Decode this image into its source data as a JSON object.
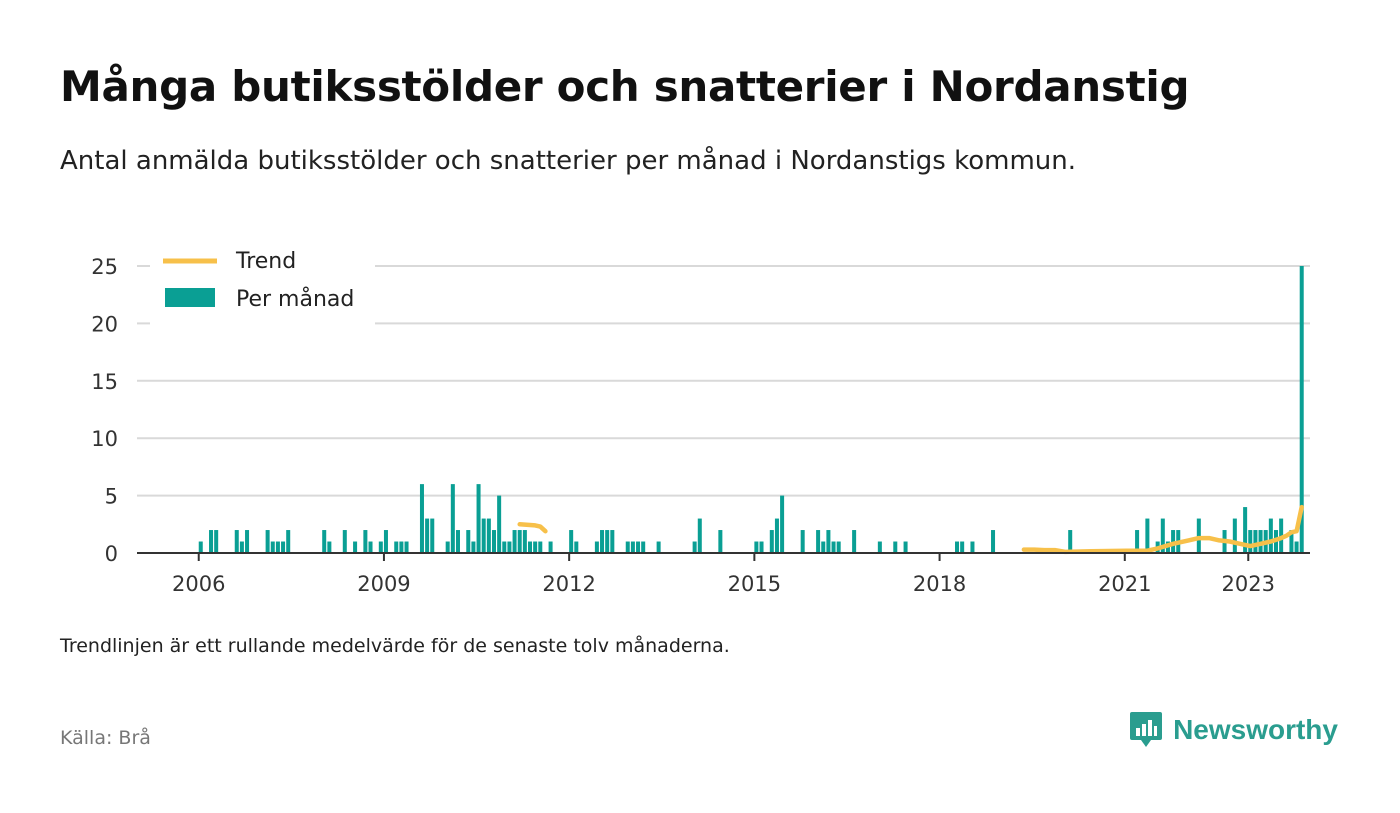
{
  "title": "Många butiksstölder och snatterier i Nordanstig",
  "subtitle": "Antal anmälda butiksstölder och snatterier per månad i Nordanstigs kommun.",
  "note": "Trendlinjen är ett rullande medelvärde för de senaste tolv månaderna.",
  "source": "Källa: Brå",
  "brand": {
    "name": "Newsworthy",
    "icon": "newsworthy-logo-icon"
  },
  "colors": {
    "bar": "#0a9f94",
    "trend": "#f7c04a",
    "grid": "#d9d9d9",
    "axis": "#333333"
  },
  "chart_data": {
    "type": "bar",
    "title": "Många butiksstölder och snatterier i Nordanstig",
    "ylim": [
      0,
      25
    ],
    "yticks": [
      0,
      5,
      10,
      15,
      20,
      25
    ],
    "xticks": [
      "2006",
      "2009",
      "2012",
      "2015",
      "2018",
      "2021",
      "2023"
    ],
    "x_range": [
      "2005-01",
      "2023-12"
    ],
    "grid": true,
    "legend_position": "top-left",
    "legend": [
      {
        "label": "Trend",
        "kind": "line"
      },
      {
        "label": "Per månad",
        "kind": "bar"
      }
    ],
    "series": [
      {
        "name": "Per månad",
        "type": "bar",
        "points": [
          [
            "2006-01",
            1
          ],
          [
            "2006-03",
            2
          ],
          [
            "2006-04",
            2
          ],
          [
            "2006-08",
            2
          ],
          [
            "2006-09",
            1
          ],
          [
            "2006-10",
            2
          ],
          [
            "2007-02",
            2
          ],
          [
            "2007-03",
            1
          ],
          [
            "2007-04",
            1
          ],
          [
            "2007-05",
            1
          ],
          [
            "2007-06",
            2
          ],
          [
            "2008-01",
            2
          ],
          [
            "2008-02",
            1
          ],
          [
            "2008-05",
            2
          ],
          [
            "2008-07",
            1
          ],
          [
            "2008-09",
            2
          ],
          [
            "2008-10",
            1
          ],
          [
            "2008-12",
            1
          ],
          [
            "2009-01",
            2
          ],
          [
            "2009-03",
            1
          ],
          [
            "2009-04",
            1
          ],
          [
            "2009-05",
            1
          ],
          [
            "2009-08",
            6
          ],
          [
            "2009-09",
            3
          ],
          [
            "2009-10",
            3
          ],
          [
            "2010-01",
            1
          ],
          [
            "2010-02",
            6
          ],
          [
            "2010-03",
            2
          ],
          [
            "2010-05",
            2
          ],
          [
            "2010-06",
            1
          ],
          [
            "2010-07",
            6
          ],
          [
            "2010-08",
            3
          ],
          [
            "2010-09",
            3
          ],
          [
            "2010-10",
            2
          ],
          [
            "2010-11",
            5
          ],
          [
            "2010-12",
            1
          ],
          [
            "2011-01",
            1
          ],
          [
            "2011-02",
            2
          ],
          [
            "2011-03",
            2
          ],
          [
            "2011-04",
            2
          ],
          [
            "2011-05",
            1
          ],
          [
            "2011-06",
            1
          ],
          [
            "2011-07",
            1
          ],
          [
            "2011-09",
            1
          ],
          [
            "2012-01",
            2
          ],
          [
            "2012-02",
            1
          ],
          [
            "2012-06",
            1
          ],
          [
            "2012-07",
            2
          ],
          [
            "2012-08",
            2
          ],
          [
            "2012-09",
            2
          ],
          [
            "2012-12",
            1
          ],
          [
            "2013-01",
            1
          ],
          [
            "2013-02",
            1
          ],
          [
            "2013-03",
            1
          ],
          [
            "2013-06",
            1
          ],
          [
            "2014-01",
            1
          ],
          [
            "2014-02",
            3
          ],
          [
            "2014-06",
            2
          ],
          [
            "2015-01",
            1
          ],
          [
            "2015-02",
            1
          ],
          [
            "2015-04",
            2
          ],
          [
            "2015-05",
            3
          ],
          [
            "2015-06",
            5
          ],
          [
            "2015-10",
            2
          ],
          [
            "2016-01",
            2
          ],
          [
            "2016-02",
            1
          ],
          [
            "2016-03",
            2
          ],
          [
            "2016-04",
            1
          ],
          [
            "2016-05",
            1
          ],
          [
            "2016-08",
            2
          ],
          [
            "2017-01",
            1
          ],
          [
            "2017-04",
            1
          ],
          [
            "2017-06",
            1
          ],
          [
            "2018-04",
            1
          ],
          [
            "2018-05",
            1
          ],
          [
            "2018-07",
            1
          ],
          [
            "2018-11",
            2
          ],
          [
            "2020-02",
            2
          ],
          [
            "2021-03",
            2
          ],
          [
            "2021-05",
            3
          ],
          [
            "2021-07",
            1
          ],
          [
            "2021-08",
            3
          ],
          [
            "2021-09",
            1
          ],
          [
            "2021-10",
            2
          ],
          [
            "2021-11",
            2
          ],
          [
            "2022-03",
            3
          ],
          [
            "2022-08",
            2
          ],
          [
            "2022-10",
            3
          ],
          [
            "2022-12",
            4
          ],
          [
            "2023-01",
            2
          ],
          [
            "2023-02",
            2
          ],
          [
            "2023-03",
            2
          ],
          [
            "2023-04",
            2
          ],
          [
            "2023-05",
            3
          ],
          [
            "2023-06",
            2
          ],
          [
            "2023-07",
            3
          ],
          [
            "2023-09",
            2
          ],
          [
            "2023-10",
            1
          ],
          [
            "2023-11",
            25
          ]
        ]
      },
      {
        "name": "Trend",
        "type": "line",
        "segments": [
          [
            [
              "2011-03",
              2.5
            ],
            [
              "2011-06",
              2.4
            ],
            [
              "2011-07",
              2.3
            ],
            [
              "2011-08",
              1.9
            ]
          ],
          [
            [
              "2019-05",
              0.3
            ],
            [
              "2019-07",
              0.3
            ],
            [
              "2019-09",
              0.25
            ],
            [
              "2019-11",
              0.25
            ],
            [
              "2020-01",
              0.1
            ],
            [
              "2020-06",
              0.15
            ],
            [
              "2021-01",
              0.2
            ],
            [
              "2021-05",
              0.2
            ],
            [
              "2021-07",
              0.4
            ],
            [
              "2021-10",
              0.8
            ],
            [
              "2022-01",
              1.1
            ],
            [
              "2022-03",
              1.3
            ],
            [
              "2022-05",
              1.3
            ],
            [
              "2022-07",
              1.1
            ],
            [
              "2022-09",
              1.0
            ],
            [
              "2022-11",
              0.8
            ],
            [
              "2023-01",
              0.6
            ],
            [
              "2023-03",
              0.8
            ],
            [
              "2023-05",
              1.0
            ],
            [
              "2023-07",
              1.3
            ],
            [
              "2023-08",
              1.5
            ],
            [
              "2023-09",
              1.8
            ],
            [
              "2023-10",
              1.9
            ],
            [
              "2023-11",
              4.0
            ]
          ]
        ]
      }
    ]
  }
}
